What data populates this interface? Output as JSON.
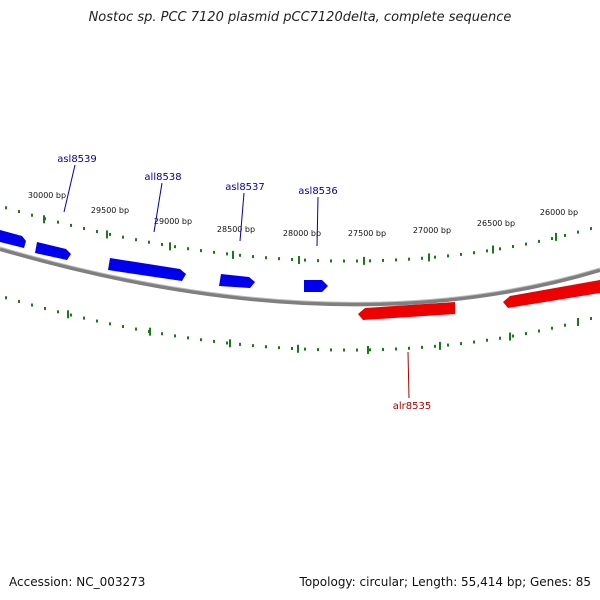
{
  "title": "Nostoc sp. PCC 7120 plasmid pCC7120delta, complete sequence",
  "colors": {
    "forward_gene": "#0000ee",
    "reverse_gene": "#ee0000",
    "backbone": "#7f7f7f",
    "ticks": "#1a7a1a",
    "label_forward": "#0000aa",
    "label_reverse": "#aa0000"
  },
  "ruler": {
    "labels": [
      "30000 bp",
      "29500 bp",
      "29000 bp",
      "28500 bp",
      "28000 bp",
      "27500 bp",
      "27000 bp",
      "26500 bp",
      "26000 bp"
    ]
  },
  "genes": [
    {
      "name": "asl8539",
      "strand": "forward",
      "labeled": true
    },
    {
      "name": "all8538",
      "strand": "forward",
      "labeled": true
    },
    {
      "name": "asl8537",
      "strand": "forward",
      "labeled": true
    },
    {
      "name": "asl8536",
      "strand": "forward",
      "labeled": true
    },
    {
      "name": "alr8535",
      "strand": "reverse",
      "labeled": true
    }
  ],
  "footer": {
    "accession": "Accession: NC_003273",
    "summary": "Topology: circular; Length: 55,414 bp; Genes: 85"
  }
}
